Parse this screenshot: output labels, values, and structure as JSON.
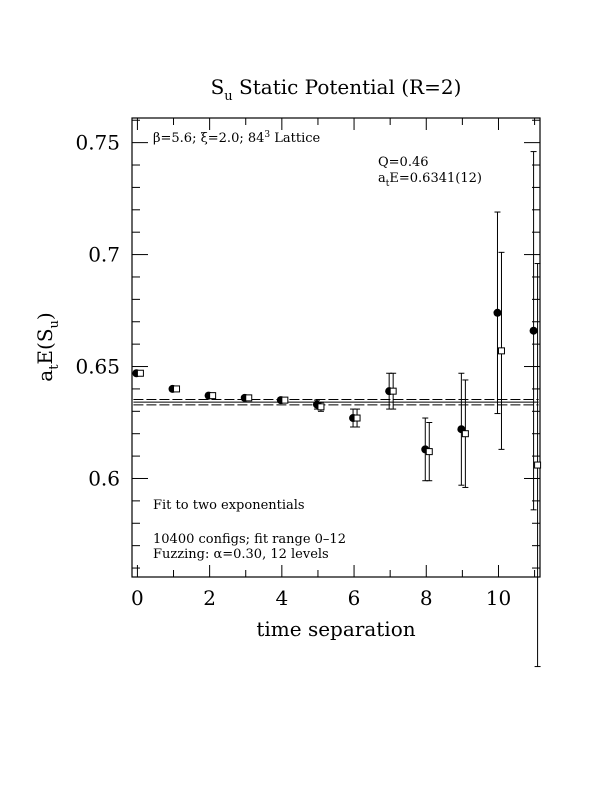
{
  "chart_data": {
    "type": "scatter",
    "title_main": "S",
    "title_sub": "u",
    "title_rest": " Static Potential (R=2)",
    "xlabel": "time separation",
    "ylabel_a": "a",
    "ylabel_t": "t",
    "ylabel_mid": "E(S",
    "ylabel_u": "u",
    "ylabel_end": ")",
    "xlim": [
      -0.15,
      11.15
    ],
    "ylim": [
      0.556,
      0.761
    ],
    "xticks": [
      0,
      2,
      4,
      6,
      8,
      10
    ],
    "xtick_labels": [
      "0",
      "2",
      "4",
      "6",
      "8",
      "10"
    ],
    "yticks": [
      0.6,
      0.65,
      0.7,
      0.75
    ],
    "ytick_labels": [
      "0.6",
      "0.65",
      "0.7",
      "0.75"
    ],
    "annotations": {
      "lattice_beta": "β=5.6; ",
      "lattice_xi": "ξ=2.0; 84",
      "lattice_cube": "3",
      "lattice_end": " Lattice",
      "q_value": "Q=0.46",
      "fit_a": "a",
      "fit_t": "t",
      "fit_rest": "E=0.6341(12)",
      "fit_method": "Fit to two exponentials",
      "configs": "10400 configs; fit range 0–12",
      "fuzzing": "Fuzzing: α=0.30, 12 levels"
    },
    "fit": {
      "value": 0.6341,
      "error": 0.0012,
      "x_range": [
        0,
        11
      ]
    },
    "series": [
      {
        "marker": "filled-circle",
        "points": [
          {
            "x": 0,
            "y": 0.647,
            "err": 0.001
          },
          {
            "x": 1,
            "y": 0.64,
            "err": 0.001
          },
          {
            "x": 2,
            "y": 0.637,
            "err": 0.001
          },
          {
            "x": 3,
            "y": 0.636,
            "err": 0.001
          },
          {
            "x": 4,
            "y": 0.635,
            "err": 0.001
          },
          {
            "x": 5,
            "y": 0.633,
            "err": 0.002
          },
          {
            "x": 6,
            "y": 0.627,
            "err": 0.004
          },
          {
            "x": 7,
            "y": 0.639,
            "err": 0.008
          },
          {
            "x": 8,
            "y": 0.613,
            "err": 0.014
          },
          {
            "x": 9,
            "y": 0.622,
            "err": 0.025
          },
          {
            "x": 10,
            "y": 0.674,
            "err": 0.045
          },
          {
            "x": 11,
            "y": 0.666,
            "err": 0.08
          }
        ]
      },
      {
        "marker": "open-square",
        "points": [
          {
            "x": 0,
            "y": 0.647,
            "err": 0.001
          },
          {
            "x": 1,
            "y": 0.64,
            "err": 0.001
          },
          {
            "x": 2,
            "y": 0.637,
            "err": 0.001
          },
          {
            "x": 3,
            "y": 0.636,
            "err": 0.001
          },
          {
            "x": 4,
            "y": 0.635,
            "err": 0.001
          },
          {
            "x": 5,
            "y": 0.632,
            "err": 0.002
          },
          {
            "x": 6,
            "y": 0.627,
            "err": 0.004
          },
          {
            "x": 7,
            "y": 0.639,
            "err": 0.008
          },
          {
            "x": 8,
            "y": 0.612,
            "err": 0.013
          },
          {
            "x": 9,
            "y": 0.62,
            "err": 0.024
          },
          {
            "x": 10,
            "y": 0.657,
            "err": 0.044
          },
          {
            "x": 11,
            "y": 0.606,
            "err": 0.09
          }
        ]
      }
    ]
  }
}
